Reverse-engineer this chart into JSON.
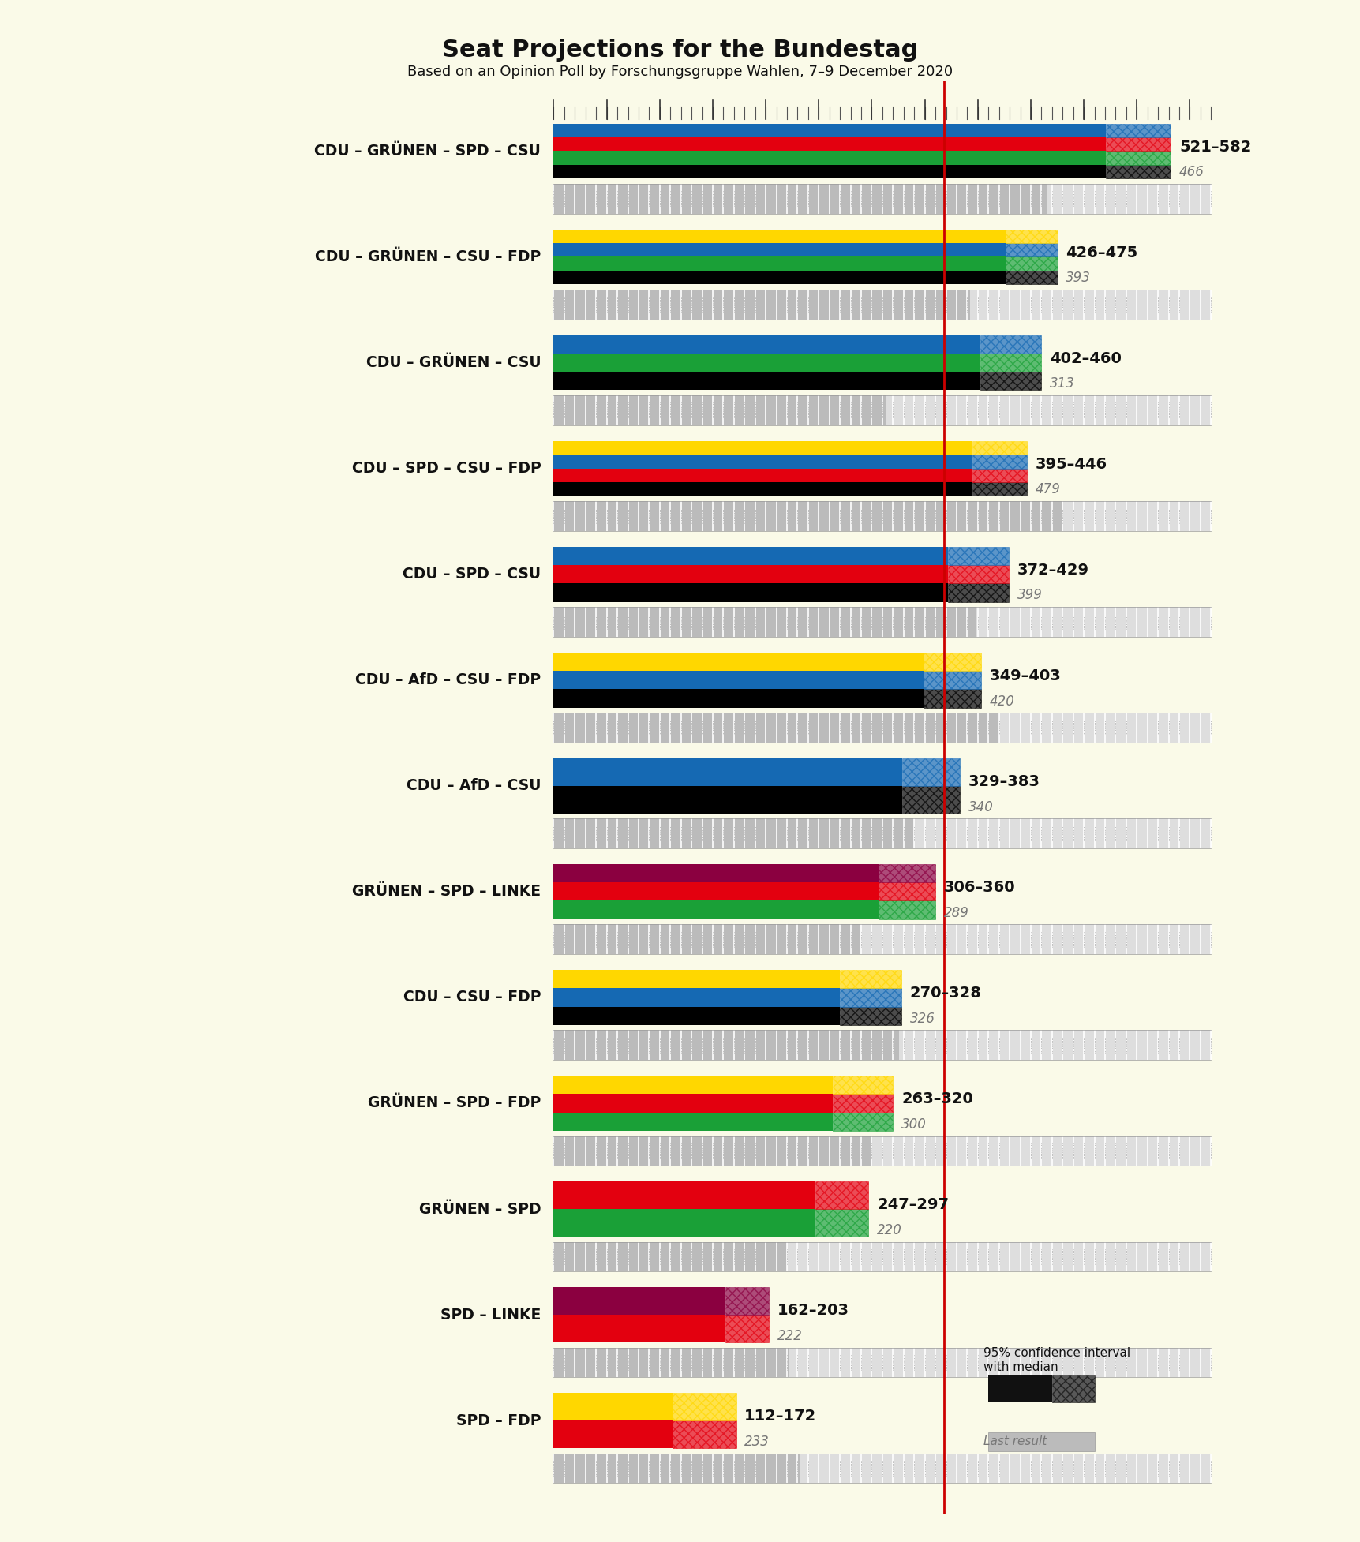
{
  "title": "Seat Projections for the Bundestag",
  "subtitle": "Based on an Opinion Poll by Forschungsgruppe Wahlen, 7–9 December 2020",
  "background_color": "#FAFAE8",
  "coalitions": [
    {
      "name": "CDU – GRÜNEN – SPD – CSU",
      "underline": false,
      "bar_colors": [
        "#000000",
        "#1AA037",
        "#E3000F",
        "#1569B3"
      ],
      "median_low": 521,
      "median_high": 582,
      "last_result": 466,
      "range_label": "521–582",
      "last_label": "466"
    },
    {
      "name": "CDU – GRÜNEN – CSU – FDP",
      "underline": false,
      "bar_colors": [
        "#000000",
        "#1AA037",
        "#1569B3",
        "#FFD700"
      ],
      "median_low": 426,
      "median_high": 475,
      "last_result": 393,
      "range_label": "426–475",
      "last_label": "393"
    },
    {
      "name": "CDU – GRÜNEN – CSU",
      "underline": false,
      "bar_colors": [
        "#000000",
        "#1AA037",
        "#1569B3"
      ],
      "median_low": 402,
      "median_high": 460,
      "last_result": 313,
      "range_label": "402–460",
      "last_label": "313"
    },
    {
      "name": "CDU – SPD – CSU – FDP",
      "underline": false,
      "bar_colors": [
        "#000000",
        "#E3000F",
        "#1569B3",
        "#FFD700"
      ],
      "median_low": 395,
      "median_high": 446,
      "last_result": 479,
      "range_label": "395–446",
      "last_label": "479"
    },
    {
      "name": "CDU – SPD – CSU",
      "underline": true,
      "bar_colors": [
        "#000000",
        "#E3000F",
        "#1569B3"
      ],
      "median_low": 372,
      "median_high": 429,
      "last_result": 399,
      "range_label": "372–429",
      "last_label": "399"
    },
    {
      "name": "CDU – AfD – CSU – FDP",
      "underline": false,
      "bar_colors": [
        "#000000",
        "#1569B3",
        "#FFD700"
      ],
      "median_low": 349,
      "median_high": 403,
      "last_result": 420,
      "range_label": "349–403",
      "last_label": "420"
    },
    {
      "name": "CDU – AfD – CSU",
      "underline": false,
      "bar_colors": [
        "#000000",
        "#1569B3"
      ],
      "median_low": 329,
      "median_high": 383,
      "last_result": 340,
      "range_label": "329–383",
      "last_label": "340"
    },
    {
      "name": "GRÜNEN – SPD – LINKE",
      "underline": false,
      "bar_colors": [
        "#1AA037",
        "#E3000F",
        "#8B0040"
      ],
      "median_low": 306,
      "median_high": 360,
      "last_result": 289,
      "range_label": "306–360",
      "last_label": "289"
    },
    {
      "name": "CDU – CSU – FDP",
      "underline": false,
      "bar_colors": [
        "#000000",
        "#1569B3",
        "#FFD700"
      ],
      "median_low": 270,
      "median_high": 328,
      "last_result": 326,
      "range_label": "270–328",
      "last_label": "326"
    },
    {
      "name": "GRÜNEN – SPD – FDP",
      "underline": false,
      "bar_colors": [
        "#1AA037",
        "#E3000F",
        "#FFD700"
      ],
      "median_low": 263,
      "median_high": 320,
      "last_result": 300,
      "range_label": "263–320",
      "last_label": "300"
    },
    {
      "name": "GRÜNEN – SPD",
      "underline": false,
      "bar_colors": [
        "#1AA037",
        "#E3000F"
      ],
      "median_low": 247,
      "median_high": 297,
      "last_result": 220,
      "range_label": "247–297",
      "last_label": "220"
    },
    {
      "name": "SPD – LINKE",
      "underline": false,
      "bar_colors": [
        "#E3000F",
        "#8B0040"
      ],
      "median_low": 162,
      "median_high": 203,
      "last_result": 222,
      "range_label": "162–203",
      "last_label": "222"
    },
    {
      "name": "SPD – FDP",
      "underline": false,
      "bar_colors": [
        "#E3000F",
        "#FFD700"
      ],
      "median_low": 112,
      "median_high": 172,
      "last_result": 233,
      "range_label": "112–172",
      "last_label": "233"
    }
  ],
  "majority_line": 368,
  "xmax": 620,
  "grid_color": "#CCCCCC",
  "last_bar_color": "#C0C0C0",
  "ruler_bg_color": "#E8E8E8"
}
